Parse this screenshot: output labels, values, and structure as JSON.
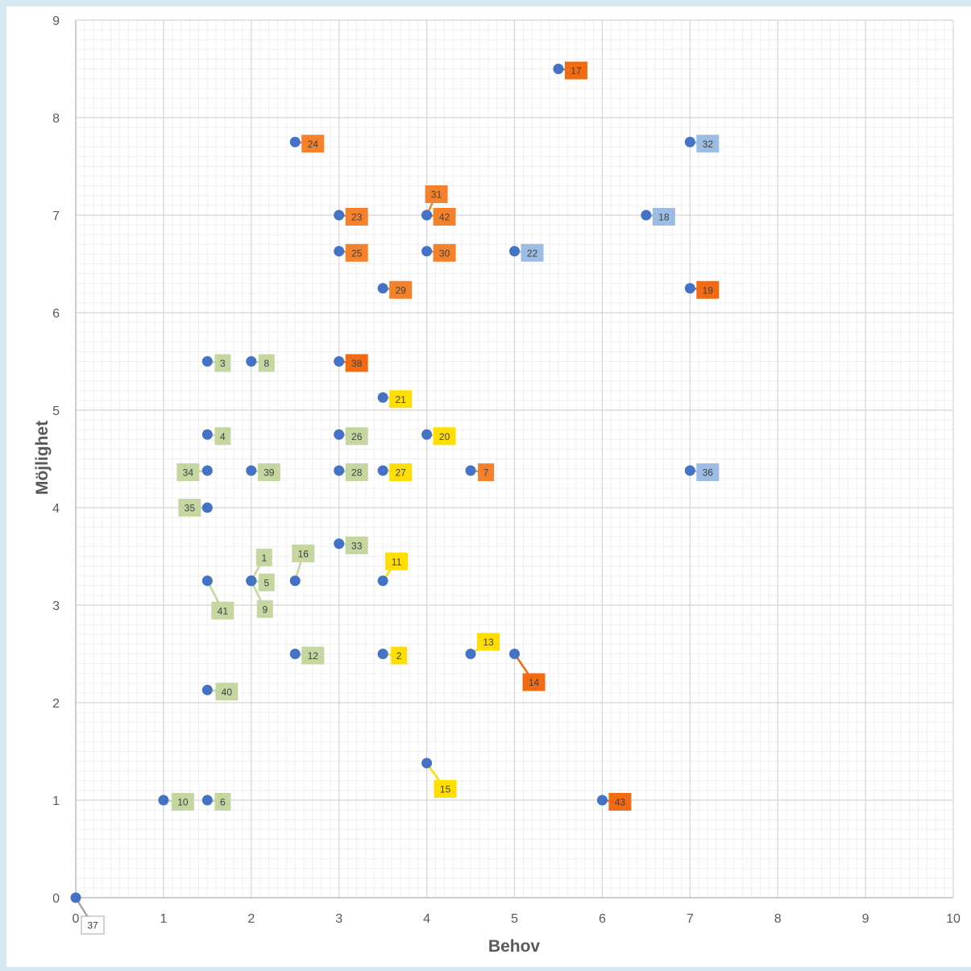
{
  "chart_data": {
    "type": "scatter",
    "title": "",
    "xlabel": "Behov",
    "ylabel": "Möjlighet",
    "xlim": [
      0,
      10
    ],
    "ylim": [
      0,
      9
    ],
    "x_ticks": [
      0,
      1,
      2,
      3,
      4,
      5,
      6,
      7,
      8,
      9,
      10
    ],
    "y_ticks": [
      0,
      1,
      2,
      3,
      4,
      5,
      6,
      7,
      8,
      9
    ],
    "grid": true,
    "minor_grid": true,
    "legend": "none",
    "marker_color": "#4472c4",
    "colors": {
      "green": "#c5d6a0",
      "yellow": "#ffde00",
      "orange": "#f5822b",
      "deep_orange": "#f26a11",
      "blue": "#9dbce3",
      "white": "#ffffff"
    },
    "points": [
      {
        "label": "1",
        "x": 2.0,
        "y": 3.25,
        "color": "green"
      },
      {
        "label": "2",
        "x": 3.5,
        "y": 2.5,
        "color": "yellow"
      },
      {
        "label": "3",
        "x": 1.5,
        "y": 5.5,
        "color": "green"
      },
      {
        "label": "4",
        "x": 1.5,
        "y": 4.75,
        "color": "green"
      },
      {
        "label": "5",
        "x": 2.0,
        "y": 3.25,
        "color": "green"
      },
      {
        "label": "6",
        "x": 1.5,
        "y": 1.0,
        "color": "green"
      },
      {
        "label": "7",
        "x": 4.5,
        "y": 4.38,
        "color": "orange"
      },
      {
        "label": "8",
        "x": 2.0,
        "y": 5.5,
        "color": "green"
      },
      {
        "label": "9",
        "x": 2.0,
        "y": 3.25,
        "color": "green"
      },
      {
        "label": "10",
        "x": 1.0,
        "y": 1.0,
        "color": "green"
      },
      {
        "label": "11",
        "x": 3.5,
        "y": 3.25,
        "color": "yellow"
      },
      {
        "label": "12",
        "x": 2.5,
        "y": 2.5,
        "color": "green"
      },
      {
        "label": "13",
        "x": 4.5,
        "y": 2.5,
        "color": "yellow"
      },
      {
        "label": "14",
        "x": 5.0,
        "y": 2.5,
        "color": "deep_orange"
      },
      {
        "label": "15",
        "x": 4.0,
        "y": 1.38,
        "color": "yellow"
      },
      {
        "label": "16",
        "x": 2.5,
        "y": 3.25,
        "color": "green"
      },
      {
        "label": "17",
        "x": 5.5,
        "y": 8.5,
        "color": "deep_orange"
      },
      {
        "label": "18",
        "x": 6.5,
        "y": 7.0,
        "color": "blue"
      },
      {
        "label": "19",
        "x": 7.0,
        "y": 6.25,
        "color": "deep_orange"
      },
      {
        "label": "20",
        "x": 4.0,
        "y": 4.75,
        "color": "yellow"
      },
      {
        "label": "21",
        "x": 3.5,
        "y": 5.13,
        "color": "yellow"
      },
      {
        "label": "22",
        "x": 5.0,
        "y": 6.63,
        "color": "blue"
      },
      {
        "label": "23",
        "x": 3.0,
        "y": 7.0,
        "color": "orange"
      },
      {
        "label": "24",
        "x": 2.5,
        "y": 7.75,
        "color": "orange"
      },
      {
        "label": "25",
        "x": 3.0,
        "y": 6.63,
        "color": "orange"
      },
      {
        "label": "26",
        "x": 3.0,
        "y": 4.75,
        "color": "green"
      },
      {
        "label": "27",
        "x": 3.5,
        "y": 4.38,
        "color": "yellow"
      },
      {
        "label": "28",
        "x": 3.0,
        "y": 4.38,
        "color": "green"
      },
      {
        "label": "29",
        "x": 3.5,
        "y": 6.25,
        "color": "orange"
      },
      {
        "label": "30",
        "x": 4.0,
        "y": 6.63,
        "color": "orange"
      },
      {
        "label": "31",
        "x": 4.0,
        "y": 7.0,
        "color": "orange"
      },
      {
        "label": "32",
        "x": 7.0,
        "y": 7.75,
        "color": "blue"
      },
      {
        "label": "33",
        "x": 3.0,
        "y": 3.63,
        "color": "green"
      },
      {
        "label": "34",
        "x": 1.5,
        "y": 4.38,
        "color": "green"
      },
      {
        "label": "35",
        "x": 1.5,
        "y": 4.0,
        "color": "green"
      },
      {
        "label": "36",
        "x": 7.0,
        "y": 4.38,
        "color": "blue"
      },
      {
        "label": "37",
        "x": 0.0,
        "y": 0.0,
        "color": "white"
      },
      {
        "label": "38",
        "x": 3.0,
        "y": 5.5,
        "color": "deep_orange"
      },
      {
        "label": "39",
        "x": 2.0,
        "y": 4.38,
        "color": "green"
      },
      {
        "label": "40",
        "x": 1.5,
        "y": 2.13,
        "color": "green"
      },
      {
        "label": "41",
        "x": 1.5,
        "y": 3.25,
        "color": "green"
      },
      {
        "label": "42",
        "x": 4.0,
        "y": 7.0,
        "color": "orange"
      },
      {
        "label": "43",
        "x": 6.0,
        "y": 1.0,
        "color": "deep_orange"
      }
    ]
  }
}
